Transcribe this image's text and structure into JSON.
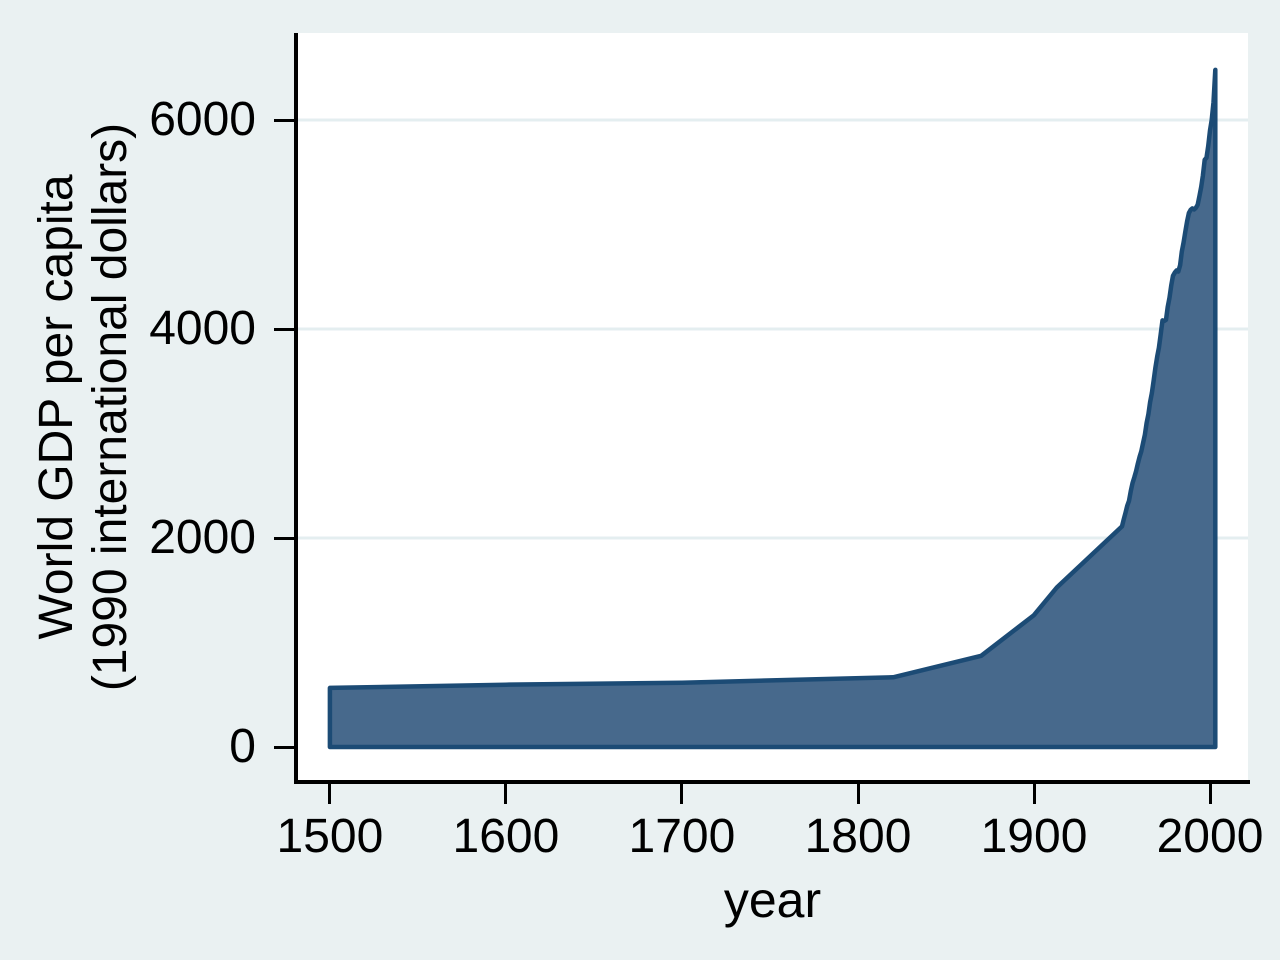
{
  "figure": {
    "background_color": "#eaf1f2",
    "plot_background_color": "#ffffff",
    "axis_color": "#000000",
    "gridline_color": "#e4eef0"
  },
  "chart_data": {
    "type": "area",
    "title": "",
    "xlabel": "year",
    "ylabel_lines": [
      "World GDP per capita",
      "(1990 international dollars)"
    ],
    "x_ticks": [
      1500,
      1600,
      1700,
      1800,
      1900,
      2000
    ],
    "x_tick_labels": [
      "1500",
      "1600",
      "1700",
      "1800",
      "1900",
      "2000"
    ],
    "y_ticks": [
      0,
      2000,
      4000,
      6000
    ],
    "y_tick_labels": [
      "0",
      "2000",
      "4000",
      "6000"
    ],
    "gridline_values": [
      2000,
      4000,
      6000
    ],
    "x_range": [
      1481.3,
      2021.6
    ],
    "y_range": [
      -335,
      6833
    ],
    "grid": true,
    "legend": "none",
    "baseline": 0,
    "area_fill_color": "#47698c",
    "area_line_color": "#1c4b75",
    "series": [
      {
        "name": "World GDP per capita (1990 international dollars)",
        "points": [
          [
            1500,
            566
          ],
          [
            1600,
            596
          ],
          [
            1700,
            615
          ],
          [
            1820,
            667
          ],
          [
            1870,
            873
          ],
          [
            1900,
            1262
          ],
          [
            1913,
            1526
          ],
          [
            1950,
            2111
          ],
          [
            1951,
            2177
          ],
          [
            1952,
            2241
          ],
          [
            1953,
            2310
          ],
          [
            1954,
            2355
          ],
          [
            1955,
            2450
          ],
          [
            1956,
            2525
          ],
          [
            1957,
            2580
          ],
          [
            1958,
            2640
          ],
          [
            1959,
            2710
          ],
          [
            1960,
            2777
          ],
          [
            1961,
            2830
          ],
          [
            1962,
            2910
          ],
          [
            1963,
            2990
          ],
          [
            1964,
            3100
          ],
          [
            1965,
            3185
          ],
          [
            1966,
            3300
          ],
          [
            1967,
            3390
          ],
          [
            1968,
            3510
          ],
          [
            1969,
            3630
          ],
          [
            1970,
            3736
          ],
          [
            1971,
            3820
          ],
          [
            1972,
            3950
          ],
          [
            1973,
            4083
          ],
          [
            1974,
            4078
          ],
          [
            1975,
            4088
          ],
          [
            1976,
            4210
          ],
          [
            1977,
            4300
          ],
          [
            1978,
            4420
          ],
          [
            1979,
            4510
          ],
          [
            1980,
            4540
          ],
          [
            1981,
            4560
          ],
          [
            1982,
            4550
          ],
          [
            1983,
            4610
          ],
          [
            1984,
            4740
          ],
          [
            1985,
            4830
          ],
          [
            1986,
            4930
          ],
          [
            1987,
            5030
          ],
          [
            1988,
            5110
          ],
          [
            1989,
            5140
          ],
          [
            1990,
            5154
          ],
          [
            1991,
            5145
          ],
          [
            1992,
            5160
          ],
          [
            1993,
            5190
          ],
          [
            1994,
            5270
          ],
          [
            1995,
            5360
          ],
          [
            1996,
            5470
          ],
          [
            1997,
            5620
          ],
          [
            1998,
            5640
          ],
          [
            1999,
            5750
          ],
          [
            2000,
            5900
          ],
          [
            2001,
            6000
          ],
          [
            2002,
            6170
          ],
          [
            2003,
            6480
          ]
        ]
      }
    ]
  }
}
